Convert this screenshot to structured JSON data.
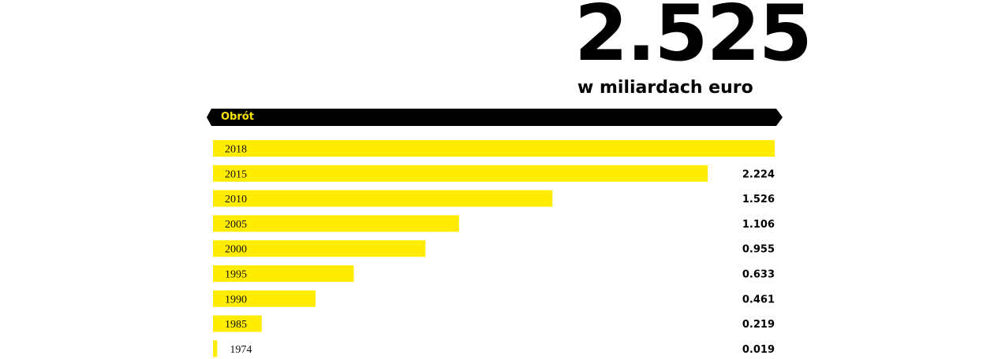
{
  "headline": {
    "value": "2.525",
    "unit": "w miliardach euro"
  },
  "section": {
    "label": "Obrót"
  },
  "colors": {
    "bar": "#ffec00",
    "banner": "#000000",
    "banner_text": "#ffe600"
  },
  "chart_data": {
    "type": "bar",
    "orientation": "horizontal",
    "title": "Obrót",
    "unit": "w miliardach euro",
    "categories": [
      "2018",
      "2015",
      "2010",
      "2005",
      "2000",
      "1995",
      "1990",
      "1985",
      "1974"
    ],
    "values": [
      2.525,
      2.224,
      1.526,
      1.106,
      0.955,
      0.633,
      0.461,
      0.219,
      0.019
    ],
    "value_labels": [
      "",
      "2.224",
      "1.526",
      "1.106",
      "0.955",
      "0.633",
      "0.461",
      "0.219",
      "0.019"
    ],
    "xlim": [
      0,
      2.525
    ],
    "grid": false,
    "legend": "none"
  }
}
